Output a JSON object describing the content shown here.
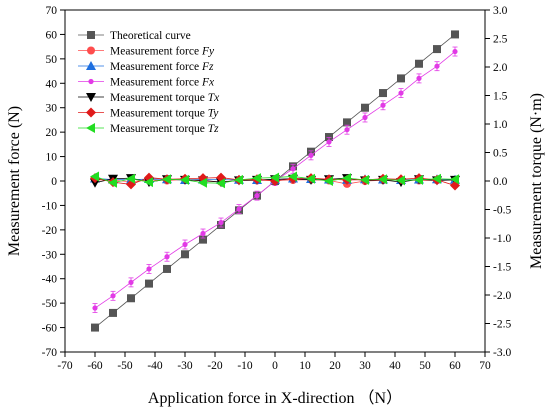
{
  "chart_data": {
    "type": "line",
    "xlabel": "Application force in X-direction （N）",
    "ylabel_left": "Measurement force (N)",
    "ylabel_right": "Measurement torque (N·m)",
    "xlim": [
      -70,
      70
    ],
    "ylim_left": [
      -70,
      70
    ],
    "ylim_right": [
      -3.0,
      3.0
    ],
    "x_ticks": [
      "-70",
      "-60",
      "-50",
      "-40",
      "-30",
      "-20",
      "-10",
      "0",
      "10",
      "20",
      "30",
      "40",
      "50",
      "60",
      "70"
    ],
    "y_left_ticks": [
      "-70",
      "-60",
      "-50",
      "-40",
      "-30",
      "-20",
      "-10",
      "0",
      "10",
      "20",
      "30",
      "40",
      "50",
      "60",
      "70"
    ],
    "y_right_ticks": [
      "-3.0",
      "-2.5",
      "-2.0",
      "-1.5",
      "-1.0",
      "-0.5",
      "0.0",
      "0.5",
      "1.0",
      "1.5",
      "2.0",
      "2.5",
      "3.0"
    ],
    "x": [
      -60,
      -54,
      -48,
      -42,
      -36,
      -30,
      -24,
      -18,
      -12,
      -6,
      0,
      6,
      12,
      18,
      24,
      30,
      36,
      42,
      48,
      54,
      60
    ],
    "legend_position": "top-left",
    "grid": false,
    "series": [
      {
        "name_prefix": "Theoretical curve",
        "name_suffix": "",
        "axis": "left",
        "color": "#555555",
        "marker": "square",
        "values": [
          -60,
          -54,
          -48,
          -42,
          -36,
          -30,
          -24,
          -18,
          -12,
          -6,
          0,
          6,
          12,
          18,
          24,
          30,
          36,
          42,
          48,
          54,
          60
        ]
      },
      {
        "name_prefix": "Measurement force ",
        "name_suffix": "Fy",
        "axis": "left",
        "color": "#ff4d4d",
        "marker": "circle",
        "values": [
          0.5,
          0.3,
          -0.3,
          0.4,
          0.2,
          0.6,
          0.0,
          -0.4,
          0.3,
          0.2,
          0.3,
          0.4,
          0.5,
          0.2,
          -1.2,
          0.0,
          0.3,
          0.4,
          0.2,
          0.3,
          0.5
        ]
      },
      {
        "name_prefix": "Measurement force ",
        "name_suffix": "Fz",
        "axis": "left",
        "color": "#1e6fe0",
        "marker": "triangle-up",
        "values": [
          1.0,
          0.6,
          0.5,
          0.8,
          0.7,
          0.4,
          0.6,
          0.5,
          0.5,
          0.4,
          0.5,
          1.0,
          0.8,
          0.6,
          0.5,
          0.7,
          0.6,
          0.4,
          0.6,
          0.7,
          0.5
        ]
      },
      {
        "name_prefix": "Measurement force ",
        "name_suffix": "Fx",
        "axis": "left",
        "color": "#e23ae6",
        "marker": "dot",
        "values": [
          -52,
          -47,
          -41.5,
          -36,
          -31,
          -26,
          -21.5,
          -17,
          -11.5,
          -6,
          0,
          5,
          10.5,
          16,
          21,
          26,
          31,
          36,
          42,
          47,
          53
        ]
      },
      {
        "name_prefix": "Measurement torque ",
        "name_suffix": "Tx",
        "axis": "right",
        "color": "#000000",
        "marker": "triangle-down",
        "values": [
          -0.03,
          0.04,
          0.05,
          -0.02,
          0.03,
          0.02,
          0.01,
          -0.02,
          0.01,
          0.02,
          0.03,
          0.04,
          0.02,
          0.03,
          0.05,
          0.01,
          0.02,
          -0.02,
          0.03,
          0.01,
          0.02
        ]
      },
      {
        "name_prefix": "Measurement torque ",
        "name_suffix": "Ty",
        "axis": "right",
        "color": "#e01a1a",
        "marker": "diamond",
        "values": [
          0.05,
          -0.02,
          -0.06,
          0.06,
          0.03,
          0.04,
          0.05,
          0.06,
          0.02,
          0.03,
          0.0,
          0.04,
          0.05,
          0.03,
          0.02,
          0.02,
          0.04,
          0.03,
          0.05,
          0.02,
          -0.08
        ]
      },
      {
        "name_prefix": "Measurement torque ",
        "name_suffix": "Tz",
        "axis": "right",
        "color": "#22dd22",
        "marker": "triangle-left",
        "values": [
          0.08,
          -0.03,
          0.04,
          -0.02,
          0.03,
          0.02,
          -0.03,
          -0.04,
          0.02,
          0.05,
          0.06,
          0.08,
          0.04,
          0.0,
          0.05,
          0.02,
          0.03,
          0.01,
          0.02,
          0.04,
          0.03
        ]
      }
    ]
  }
}
